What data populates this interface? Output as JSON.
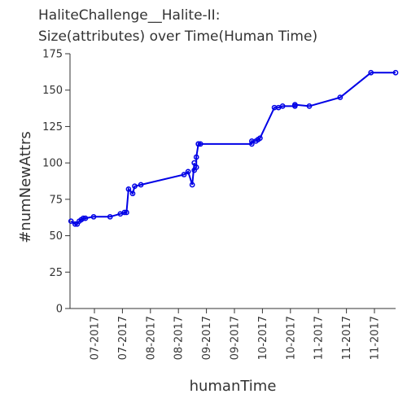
{
  "chart_data": {
    "type": "line",
    "title": "HaliteChallenge__Halite-II:",
    "subtitle": "Size(attributes) over Time(Human Time)",
    "xlabel": "humanTime",
    "ylabel": "#numNewAttrs",
    "ylim": [
      0,
      175
    ],
    "y_ticks": [
      0,
      25,
      50,
      75,
      100,
      125,
      150,
      175
    ],
    "x_tick_labels": [
      "07-2017",
      "07-2017",
      "08-2017",
      "08-2017",
      "09-2017",
      "09-2017",
      "10-2017",
      "10-2017",
      "11-2017",
      "11-2017",
      "11-2017"
    ],
    "grid": false,
    "line_color": "#0000e6",
    "series": [
      {
        "name": "",
        "x": [
          "2017-06-15",
          "2017-06-17",
          "2017-06-18",
          "2017-06-19",
          "2017-06-20",
          "2017-06-21",
          "2017-06-22",
          "2017-06-26",
          "2017-07-04",
          "2017-07-09",
          "2017-07-11",
          "2017-07-12",
          "2017-07-13",
          "2017-07-15",
          "2017-07-16",
          "2017-07-19",
          "2017-08-09",
          "2017-08-11",
          "2017-08-13",
          "2017-08-14",
          "2017-08-14",
          "2017-08-15",
          "2017-08-15",
          "2017-08-16",
          "2017-08-16",
          "2017-08-17",
          "2017-09-11",
          "2017-09-11",
          "2017-09-13",
          "2017-09-14",
          "2017-09-15",
          "2017-09-22",
          "2017-09-24",
          "2017-09-26",
          "2017-10-02",
          "2017-10-02",
          "2017-10-09",
          "2017-10-24",
          "2017-11-08",
          "2017-11-20"
        ],
        "y": [
          60,
          58,
          58,
          60,
          61,
          62,
          62,
          63,
          63,
          65,
          66,
          66,
          82,
          79,
          84,
          85,
          92,
          94,
          85,
          100,
          95,
          97,
          104,
          113,
          113,
          113,
          113,
          115,
          115,
          116,
          117,
          138,
          138,
          139,
          139,
          140,
          139,
          145,
          162,
          162
        ]
      }
    ]
  }
}
